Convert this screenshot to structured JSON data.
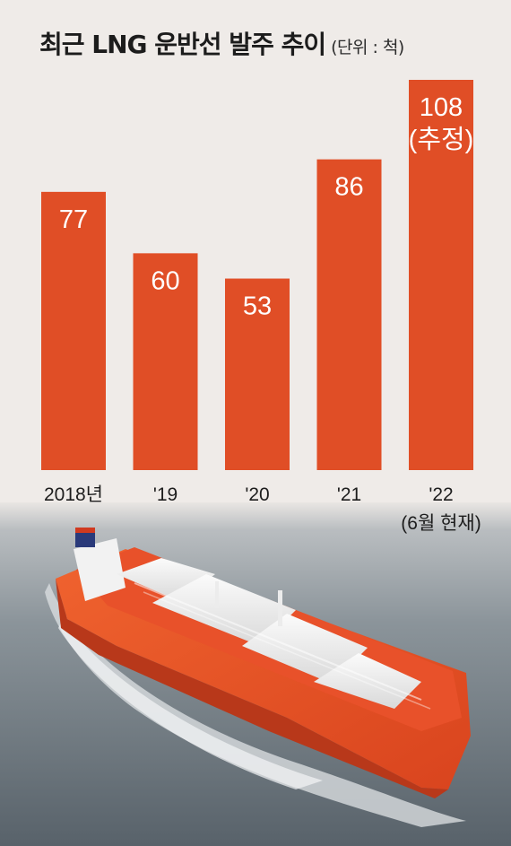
{
  "header": {
    "title": "최근 LNG 운반선 발주 추이",
    "unit": "(단위 : 척)"
  },
  "colors": {
    "bar": "#e04e26",
    "background": "#efebe8",
    "sea": "#6f7a82"
  },
  "chart_data": {
    "type": "bar",
    "categories": [
      "2018년",
      "'19",
      "'20",
      "'21",
      "'22"
    ],
    "category_notes": [
      "",
      "",
      "",
      "",
      "(6월 현재)"
    ],
    "values": [
      77,
      60,
      53,
      86,
      108
    ],
    "value_labels": [
      "77",
      "60",
      "53",
      "86",
      "108"
    ],
    "value_notes": [
      "",
      "",
      "",
      "",
      "(추정)"
    ],
    "title": "최근 LNG 운반선 발주 추이",
    "ylabel": "",
    "xlabel": "",
    "unit": "척",
    "grid": false,
    "legend": "none"
  }
}
